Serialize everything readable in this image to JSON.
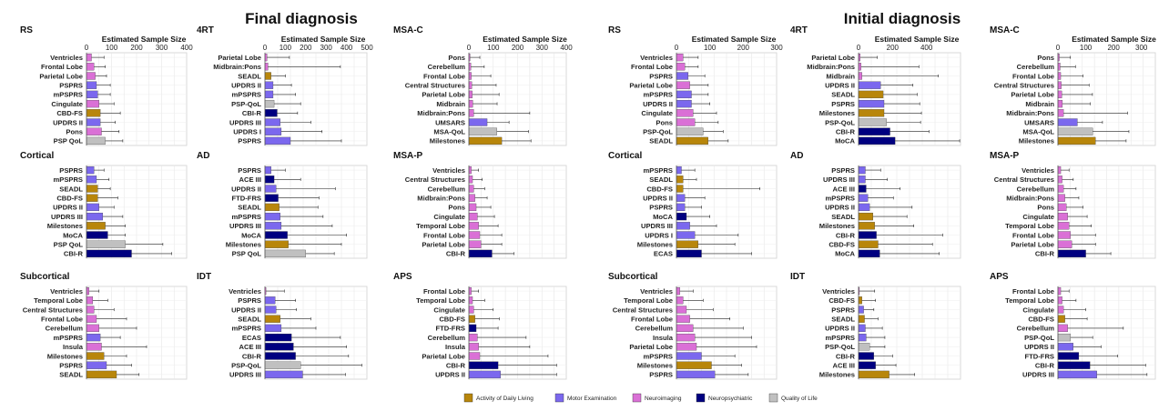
{
  "sections": [
    {
      "title": "Final diagnosis"
    },
    {
      "title": "Initial diagnosis"
    }
  ],
  "legend": [
    {
      "key": "adl",
      "label": "Activity of Daily Living",
      "color": "#b8860b"
    },
    {
      "key": "motor",
      "label": "Motor Examination",
      "color": "#7b68ee"
    },
    {
      "key": "neuroimaging",
      "label": "Neuroimaging",
      "color": "#da70d6"
    },
    {
      "key": "neuropsych",
      "label": "Neuropsychiatric",
      "color": "#000080"
    },
    {
      "key": "qol",
      "label": "Quality of Life",
      "color": "#c0c0c0"
    }
  ],
  "chart_data": [
    {
      "section": 0,
      "title": "RS",
      "type": "bar",
      "orientation": "horizontal",
      "xlabel": "Estimated Sample Size",
      "xlim": [
        0,
        400
      ],
      "ticks": [
        0,
        100,
        200,
        300,
        400
      ],
      "categories": [
        "Ventricles",
        "Frontal Lobe",
        "Parietal Lobe",
        "PSPRS",
        "mPSPRS",
        "Cingulate",
        "CBD-FS",
        "UPDRS II",
        "Pons",
        "PSP QoL"
      ],
      "values": [
        20,
        30,
        35,
        40,
        45,
        50,
        55,
        55,
        60,
        75
      ],
      "errors": [
        50,
        45,
        45,
        55,
        50,
        60,
        80,
        60,
        70,
        70
      ],
      "groups": [
        "neuroimaging",
        "neuroimaging",
        "neuroimaging",
        "motor",
        "motor",
        "neuroimaging",
        "adl",
        "motor",
        "neuroimaging",
        "qol"
      ]
    },
    {
      "section": 0,
      "title": "4RT",
      "type": "bar",
      "orientation": "horizontal",
      "xlabel": "Estimated Sample Size",
      "xlim": [
        0,
        500
      ],
      "ticks": [
        0,
        100,
        200,
        300,
        400,
        500
      ],
      "categories": [
        "Parietal Lobe",
        "Midbrain:Pons",
        "SEADL",
        "UPDRS II",
        "mPSPRS",
        "PSP-QoL",
        "CBI-R",
        "UPDRS III",
        "UPDRS I",
        "PSPRS"
      ],
      "values": [
        10,
        15,
        30,
        40,
        40,
        45,
        60,
        75,
        80,
        125
      ],
      "errors": [
        110,
        355,
        70,
        90,
        110,
        130,
        100,
        150,
        200,
        250
      ],
      "groups": [
        "neuroimaging",
        "neuroimaging",
        "adl",
        "motor",
        "motor",
        "qol",
        "neuropsych",
        "motor",
        "motor",
        "motor"
      ]
    },
    {
      "section": 0,
      "title": "MSA-C",
      "type": "bar",
      "orientation": "horizontal",
      "xlabel": "Estimated Sample Size",
      "xlim": [
        0,
        400
      ],
      "ticks": [
        0,
        100,
        200,
        300,
        400
      ],
      "categories": [
        "Pons",
        "Cerebellum",
        "Frontal Lobe",
        "Central Structures",
        "Parietal Lobe",
        "Midbrain",
        "Midbrain:Pons",
        "UMSARS",
        "MSA-QoL",
        "Milestones"
      ],
      "values": [
        5,
        8,
        10,
        12,
        14,
        16,
        20,
        75,
        115,
        135
      ],
      "errors": [
        40,
        55,
        80,
        100,
        110,
        100,
        230,
        90,
        130,
        120
      ],
      "groups": [
        "neuroimaging",
        "neuroimaging",
        "neuroimaging",
        "neuroimaging",
        "neuroimaging",
        "neuroimaging",
        "neuroimaging",
        "motor",
        "qol",
        "adl"
      ]
    },
    {
      "section": 0,
      "title": "Cortical",
      "type": "bar",
      "orientation": "horizontal",
      "xlabel": "",
      "xlim": [
        0,
        400
      ],
      "ticks": [],
      "categories": [
        "PSPRS",
        "mPSPRS",
        "SEADL",
        "CBD-FS",
        "UPDRS II",
        "UPDRS III",
        "Milestones",
        "MoCA",
        "PSP QoL",
        "CBI-R"
      ],
      "values": [
        30,
        40,
        45,
        45,
        50,
        65,
        75,
        85,
        155,
        180
      ],
      "errors": [
        40,
        50,
        50,
        80,
        60,
        80,
        80,
        70,
        150,
        160
      ],
      "groups": [
        "motor",
        "motor",
        "adl",
        "adl",
        "motor",
        "motor",
        "adl",
        "neuropsych",
        "qol",
        "neuropsych"
      ]
    },
    {
      "section": 0,
      "title": "AD",
      "type": "bar",
      "orientation": "horizontal",
      "xlabel": "",
      "xlim": [
        0,
        500
      ],
      "ticks": [],
      "categories": [
        "PSPRS",
        "ACE III",
        "UPDRS II",
        "FTD-FRS",
        "SEADL",
        "mPSPRS",
        "UPDRS III",
        "MoCA",
        "Milestones",
        "PSP QoL"
      ],
      "values": [
        30,
        45,
        55,
        65,
        70,
        75,
        80,
        110,
        115,
        200
      ],
      "errors": [
        70,
        130,
        290,
        200,
        190,
        210,
        250,
        290,
        260,
        140
      ],
      "groups": [
        "motor",
        "neuropsych",
        "motor",
        "neuropsych",
        "adl",
        "motor",
        "motor",
        "neuropsych",
        "adl",
        "qol"
      ]
    },
    {
      "section": 0,
      "title": "MSA-P",
      "type": "bar",
      "orientation": "horizontal",
      "xlabel": "",
      "xlim": [
        0,
        400
      ],
      "ticks": [],
      "categories": [
        "Ventricles",
        "Central Structures",
        "Cerebellum",
        "Midbrain:Pons",
        "Pons",
        "Cingulate",
        "Temporal Lobe",
        "Frontal Lobe",
        "Parietal Lobe",
        "CBI-R"
      ],
      "values": [
        10,
        15,
        20,
        25,
        30,
        35,
        40,
        45,
        50,
        95
      ],
      "errors": [
        30,
        40,
        45,
        50,
        60,
        70,
        80,
        90,
        85,
        90
      ],
      "groups": [
        "neuroimaging",
        "neuroimaging",
        "neuroimaging",
        "neuroimaging",
        "neuroimaging",
        "neuroimaging",
        "neuroimaging",
        "neuroimaging",
        "neuroimaging",
        "neuropsych"
      ]
    },
    {
      "section": 0,
      "title": "Subcortical",
      "type": "bar",
      "orientation": "horizontal",
      "xlabel": "",
      "xlim": [
        0,
        400
      ],
      "ticks": [],
      "categories": [
        "Ventricles",
        "Temporal Lobe",
        "Central Structures",
        "Frontal Lobe",
        "Cerebellum",
        "mPSPRS",
        "Insula",
        "Milestones",
        "PSPRS",
        "SEADL"
      ],
      "values": [
        10,
        25,
        30,
        40,
        50,
        55,
        60,
        70,
        80,
        120
      ],
      "errors": [
        40,
        60,
        80,
        120,
        150,
        80,
        180,
        90,
        100,
        90
      ],
      "groups": [
        "neuroimaging",
        "neuroimaging",
        "neuroimaging",
        "neuroimaging",
        "neuroimaging",
        "motor",
        "neuroimaging",
        "adl",
        "motor",
        "adl"
      ]
    },
    {
      "section": 0,
      "title": "IDT",
      "type": "bar",
      "orientation": "horizontal",
      "xlabel": "",
      "xlim": [
        0,
        500
      ],
      "ticks": [],
      "categories": [
        "Ventricles",
        "PSPRS",
        "UPDRS II",
        "SEADL",
        "mPSPRS",
        "ECAS",
        "ACE III",
        "CBI-R",
        "PSP-QoL",
        "UPDRS III"
      ],
      "values": [
        5,
        50,
        55,
        75,
        80,
        130,
        140,
        150,
        175,
        185
      ],
      "errors": [
        90,
        100,
        100,
        150,
        170,
        240,
        260,
        260,
        300,
        210
      ],
      "groups": [
        "neuroimaging",
        "motor",
        "motor",
        "adl",
        "motor",
        "neuropsych",
        "neuropsych",
        "neuropsych",
        "qol",
        "motor"
      ]
    },
    {
      "section": 0,
      "title": "APS",
      "type": "bar",
      "orientation": "horizontal",
      "xlabel": "",
      "xlim": [
        0,
        400
      ],
      "ticks": [],
      "categories": [
        "Frontal Lobe",
        "Temporal Lobe",
        "Cingulate",
        "CBD-FS",
        "FTD-FRS",
        "Cerebellum",
        "Insula",
        "Parietal Lobe",
        "CBI-R",
        "UPDRS II"
      ],
      "values": [
        10,
        15,
        20,
        25,
        30,
        35,
        40,
        45,
        120,
        130
      ],
      "errors": [
        30,
        50,
        80,
        100,
        90,
        200,
        210,
        280,
        240,
        230
      ],
      "groups": [
        "neuroimaging",
        "neuroimaging",
        "neuroimaging",
        "adl",
        "neuropsych",
        "neuroimaging",
        "neuroimaging",
        "neuroimaging",
        "neuropsych",
        "motor"
      ]
    },
    {
      "section": 1,
      "title": "RS",
      "type": "bar",
      "orientation": "horizontal",
      "xlabel": "Estimated Sample Size",
      "xlim": [
        0,
        300
      ],
      "ticks": [
        0,
        100,
        200,
        300
      ],
      "categories": [
        "Ventricles",
        "Frontal Lobe",
        "PSPRS",
        "Parietal Lobe",
        "mPSPRS",
        "UPDRS II",
        "Cingulate",
        "Pons",
        "PSP-QoL",
        "SEADL"
      ],
      "values": [
        20,
        25,
        35,
        40,
        45,
        45,
        50,
        55,
        80,
        95
      ],
      "errors": [
        45,
        40,
        50,
        55,
        50,
        55,
        70,
        70,
        60,
        60
      ],
      "groups": [
        "neuroimaging",
        "neuroimaging",
        "motor",
        "neuroimaging",
        "motor",
        "motor",
        "neuroimaging",
        "neuroimaging",
        "qol",
        "adl"
      ]
    },
    {
      "section": 1,
      "title": "4RT",
      "type": "bar",
      "orientation": "horizontal",
      "xlabel": "Estimated Sample Size",
      "xlim": [
        0,
        600
      ],
      "ticks": [
        0,
        200,
        400
      ],
      "categories": [
        "Parietal Lobe",
        "Midbrain:Pons",
        "Midbrain",
        "UPDRS II",
        "SEADL",
        "PSPRS",
        "Milestones",
        "PSP-QoL",
        "CBI-R",
        "MoCA"
      ],
      "values": [
        10,
        15,
        20,
        130,
        145,
        150,
        150,
        165,
        185,
        215
      ],
      "errors": [
        100,
        340,
        450,
        190,
        200,
        210,
        220,
        200,
        230,
        380
      ],
      "groups": [
        "neuroimaging",
        "neuroimaging",
        "neuroimaging",
        "motor",
        "adl",
        "motor",
        "adl",
        "qol",
        "neuropsych",
        "neuropsych"
      ]
    },
    {
      "section": 1,
      "title": "MSA-C",
      "type": "bar",
      "orientation": "horizontal",
      "xlabel": "Estimated Sample Size",
      "xlim": [
        0,
        350
      ],
      "ticks": [
        0,
        100,
        200,
        300
      ],
      "categories": [
        "Pons",
        "Cerebellum",
        "Frontal Lobe",
        "Central Structures",
        "Parietal Lobe",
        "Midbrain",
        "Midbrain:Pons",
        "UMSARS",
        "MSA-QoL",
        "Milestones"
      ],
      "values": [
        5,
        8,
        10,
        12,
        14,
        16,
        20,
        70,
        125,
        135
      ],
      "errors": [
        40,
        55,
        80,
        100,
        110,
        100,
        230,
        90,
        130,
        110
      ],
      "groups": [
        "neuroimaging",
        "neuroimaging",
        "neuroimaging",
        "neuroimaging",
        "neuroimaging",
        "neuroimaging",
        "neuroimaging",
        "motor",
        "qol",
        "adl"
      ]
    },
    {
      "section": 1,
      "title": "Cortical",
      "type": "bar",
      "orientation": "horizontal",
      "xlabel": "",
      "xlim": [
        0,
        300
      ],
      "ticks": [],
      "categories": [
        "mPSPRS",
        "SEADL",
        "CBD-FS",
        "UPDRS II",
        "PSPRS",
        "MoCA",
        "UPDRS III",
        "UPDRS I",
        "Milestones",
        "ECAS"
      ],
      "values": [
        15,
        20,
        20,
        25,
        25,
        30,
        40,
        55,
        65,
        75
      ],
      "errors": [
        40,
        40,
        230,
        60,
        50,
        70,
        80,
        130,
        110,
        150
      ],
      "groups": [
        "motor",
        "adl",
        "adl",
        "motor",
        "motor",
        "neuropsych",
        "motor",
        "motor",
        "adl",
        "neuropsych"
      ]
    },
    {
      "section": 1,
      "title": "AD",
      "type": "bar",
      "orientation": "horizontal",
      "xlabel": "",
      "xlim": [
        0,
        600
      ],
      "ticks": [],
      "categories": [
        "PSPRS",
        "UPDRS III",
        "ACE III",
        "mPSPRS",
        "UPDRS II",
        "SEADL",
        "Milestones",
        "CBI-R",
        "CBD-FS",
        "MoCA"
      ],
      "values": [
        40,
        40,
        45,
        55,
        65,
        85,
        95,
        105,
        115,
        125
      ],
      "errors": [
        90,
        130,
        200,
        150,
        250,
        200,
        230,
        390,
        320,
        350
      ],
      "groups": [
        "motor",
        "motor",
        "neuropsych",
        "motor",
        "motor",
        "adl",
        "adl",
        "neuropsych",
        "adl",
        "neuropsych"
      ]
    },
    {
      "section": 1,
      "title": "MSA-P",
      "type": "bar",
      "orientation": "horizontal",
      "xlabel": "",
      "xlim": [
        0,
        350
      ],
      "ticks": [],
      "categories": [
        "Ventricles",
        "Central Structures",
        "Cerebellum",
        "Midbrain:Pons",
        "Pons",
        "Cingulate",
        "Temporal Lobe",
        "Frontal Lobe",
        "Parietal Lobe",
        "CBI-R"
      ],
      "values": [
        10,
        15,
        20,
        25,
        30,
        35,
        40,
        45,
        50,
        100
      ],
      "errors": [
        30,
        40,
        45,
        50,
        60,
        70,
        80,
        90,
        85,
        90
      ],
      "groups": [
        "neuroimaging",
        "neuroimaging",
        "neuroimaging",
        "neuroimaging",
        "neuroimaging",
        "neuroimaging",
        "neuroimaging",
        "neuroimaging",
        "neuroimaging",
        "neuropsych"
      ]
    },
    {
      "section": 1,
      "title": "Subcortical",
      "type": "bar",
      "orientation": "horizontal",
      "xlabel": "",
      "xlim": [
        0,
        300
      ],
      "ticks": [],
      "categories": [
        "Ventricles",
        "Temporal Lobe",
        "Central Structures",
        "Frontal Lobe",
        "Cerebellum",
        "Insula",
        "Parietal Lobe",
        "mPSPRS",
        "Milestones",
        "PSPRS"
      ],
      "values": [
        10,
        20,
        30,
        40,
        50,
        55,
        60,
        75,
        105,
        115
      ],
      "errors": [
        40,
        60,
        80,
        120,
        150,
        170,
        180,
        100,
        90,
        100
      ],
      "groups": [
        "neuroimaging",
        "neuroimaging",
        "neuroimaging",
        "neuroimaging",
        "neuroimaging",
        "neuroimaging",
        "neuroimaging",
        "motor",
        "adl",
        "motor"
      ]
    },
    {
      "section": 1,
      "title": "IDT",
      "type": "bar",
      "orientation": "horizontal",
      "xlabel": "",
      "xlim": [
        0,
        600
      ],
      "ticks": [],
      "categories": [
        "Ventricles",
        "CBD-FS",
        "PSPRS",
        "SEADL",
        "UPDRS II",
        "mPSPRS",
        "PSP-QoL",
        "CBI-R",
        "ACE III",
        "Milestones"
      ],
      "values": [
        5,
        20,
        30,
        35,
        40,
        45,
        65,
        90,
        100,
        180
      ],
      "errors": [
        90,
        80,
        60,
        80,
        100,
        110,
        90,
        110,
        120,
        150
      ],
      "groups": [
        "neuroimaging",
        "adl",
        "motor",
        "adl",
        "motor",
        "motor",
        "qol",
        "neuropsych",
        "neuropsych",
        "adl"
      ]
    },
    {
      "section": 1,
      "title": "APS",
      "type": "bar",
      "orientation": "horizontal",
      "xlabel": "",
      "xlim": [
        0,
        350
      ],
      "ticks": [],
      "categories": [
        "Frontal Lobe",
        "Temporal Lobe",
        "Cingulate",
        "CBD-FS",
        "Cerebellum",
        "PSP-QoL",
        "UPDRS II",
        "FTD-FRS",
        "CBI-R",
        "UPDRS III"
      ],
      "values": [
        10,
        15,
        20,
        25,
        35,
        45,
        55,
        75,
        115,
        140
      ],
      "errors": [
        30,
        50,
        80,
        80,
        200,
        80,
        100,
        140,
        200,
        180
      ],
      "groups": [
        "neuroimaging",
        "neuroimaging",
        "neuroimaging",
        "adl",
        "neuroimaging",
        "qol",
        "motor",
        "neuropsych",
        "neuropsych",
        "motor"
      ]
    }
  ]
}
